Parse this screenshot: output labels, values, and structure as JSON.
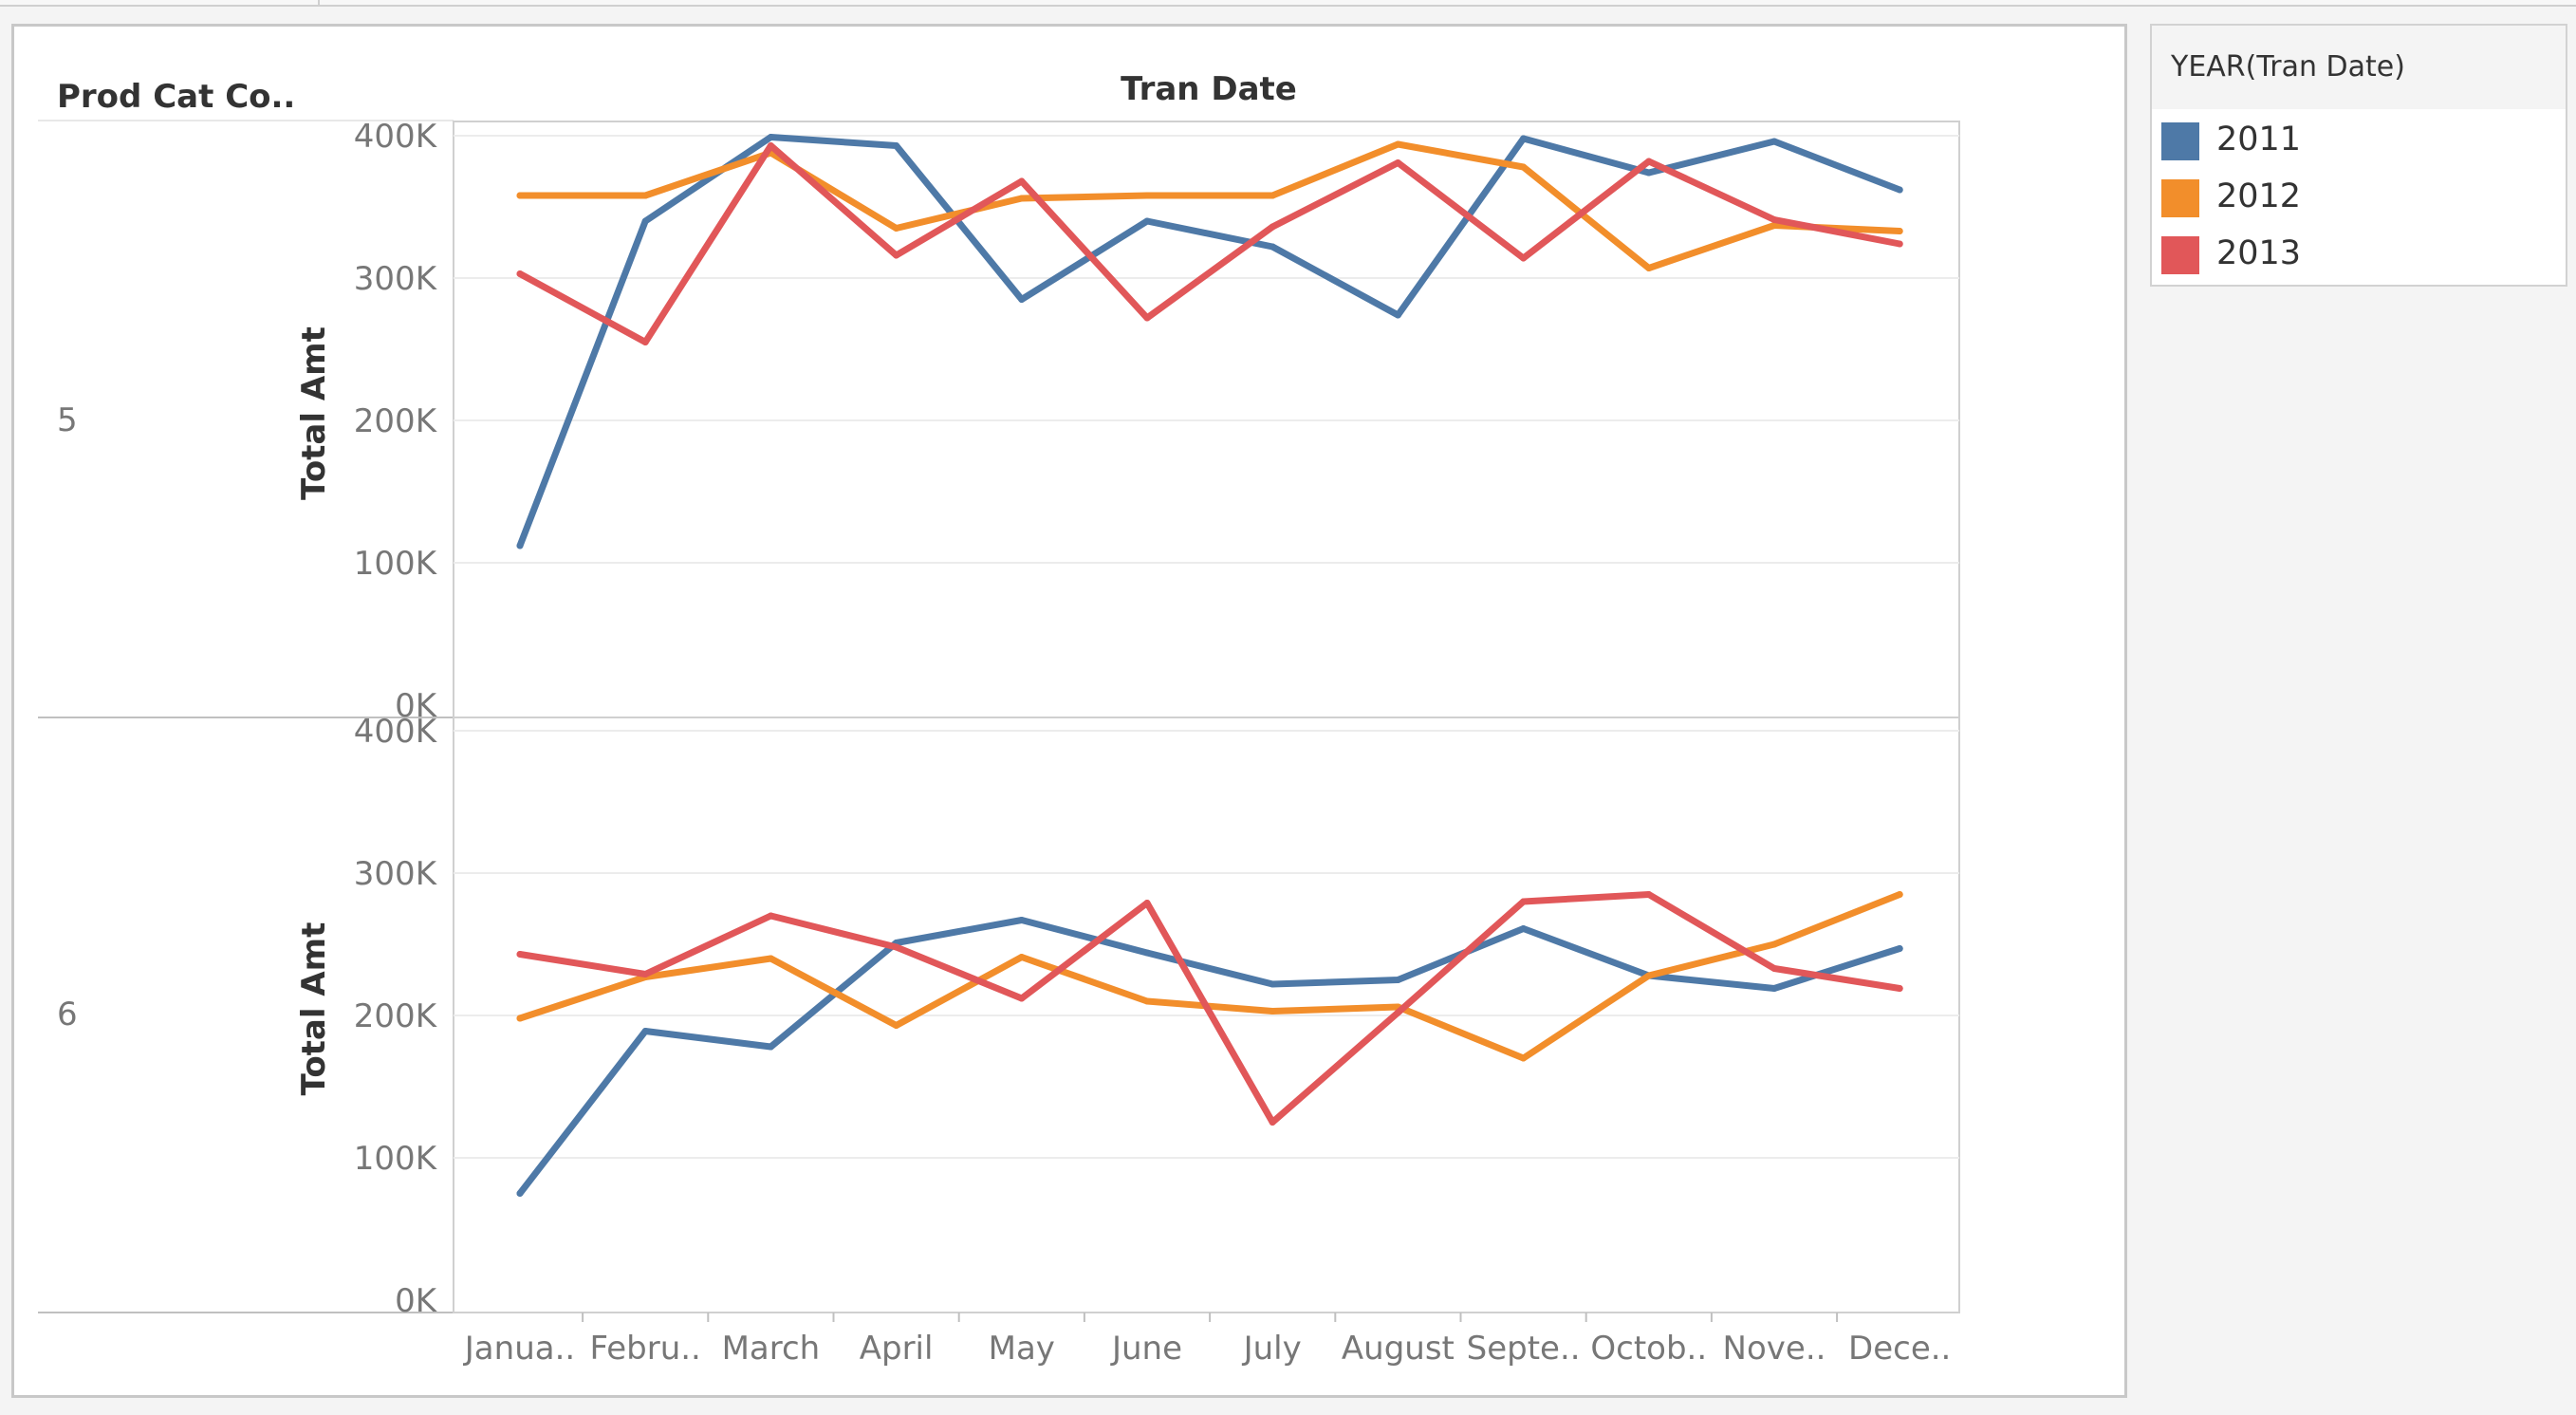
{
  "header": {
    "row_field_label": "Prod Cat Co..",
    "column_field_label": "Tran Date"
  },
  "legend": {
    "title": "YEAR(Tran Date)",
    "items": [
      {
        "label": "2011",
        "color": "#4e79a7"
      },
      {
        "label": "2012",
        "color": "#f28e2b"
      },
      {
        "label": "2013",
        "color": "#e15759"
      }
    ]
  },
  "chart_data": {
    "type": "line",
    "x_field": "Tran Date",
    "color_field": "YEAR(Tran Date)",
    "categories": [
      "Janua..",
      "Febru..",
      "March",
      "April",
      "May",
      "June",
      "July",
      "August",
      "Septe..",
      "Octob..",
      "Nove..",
      "Dece.."
    ],
    "y_ticks": [
      "0K",
      "100K",
      "200K",
      "300K",
      "400K"
    ],
    "ylim": [
      0,
      420000
    ],
    "grid": true,
    "legend_placement": "right",
    "panes": [
      {
        "row_label": "5",
        "ylabel": "Total Amt",
        "series": [
          {
            "name": "2011",
            "color": "#4e79a7",
            "values": [
              112000,
              340000,
              399000,
              393000,
              285000,
              340000,
              322000,
              274000,
              398000,
              374000,
              396000,
              362000
            ]
          },
          {
            "name": "2012",
            "color": "#f28e2b",
            "values": [
              358000,
              358000,
              388000,
              335000,
              356000,
              358000,
              358000,
              394000,
              378000,
              307000,
              337000,
              333000
            ]
          },
          {
            "name": "2013",
            "color": "#e15759",
            "values": [
              303000,
              255000,
              393000,
              316000,
              368000,
              272000,
              336000,
              381000,
              314000,
              382000,
              341000,
              324000
            ]
          }
        ]
      },
      {
        "row_label": "6",
        "ylabel": "Total Amt",
        "series": [
          {
            "name": "2011",
            "color": "#4e79a7",
            "values": [
              75000,
              189000,
              178000,
              251000,
              267000,
              244000,
              222000,
              225000,
              261000,
              228000,
              219000,
              247000
            ]
          },
          {
            "name": "2012",
            "color": "#f28e2b",
            "values": [
              198000,
              227000,
              240000,
              193000,
              241000,
              210000,
              203000,
              206000,
              170000,
              228000,
              250000,
              285000
            ]
          },
          {
            "name": "2013",
            "color": "#e15759",
            "values": [
              243000,
              229000,
              270000,
              248000,
              212000,
              279000,
              125000,
              202000,
              280000,
              285000,
              233000,
              219000
            ]
          }
        ]
      }
    ]
  }
}
